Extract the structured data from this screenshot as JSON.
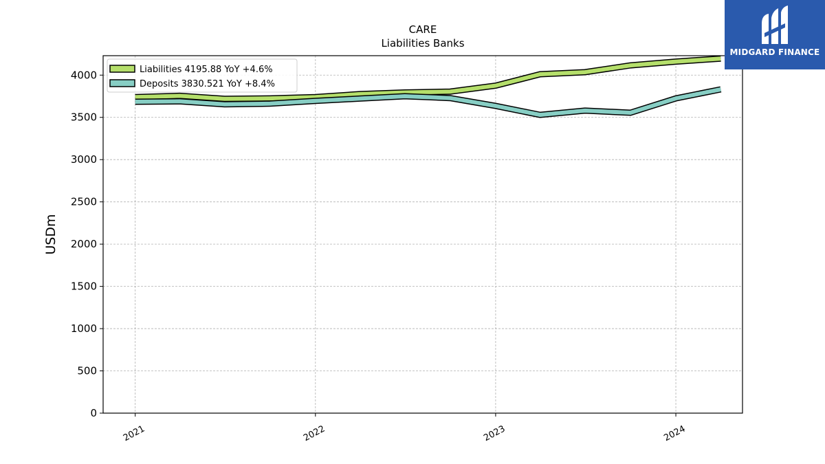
{
  "brand": {
    "name": "MIDGARD FINANCE",
    "icon": "midgard-mark-icon",
    "background": "#2a5aad"
  },
  "chart_data": {
    "type": "line",
    "title": "CARE",
    "subtitle": "Liabilities Banks",
    "xlabel": "",
    "ylabel": "USDm",
    "ylim": [
      0,
      4230
    ],
    "yticks": [
      0,
      500,
      1000,
      1500,
      2000,
      2500,
      3000,
      3500,
      4000
    ],
    "xticks": [
      "2021",
      "2022",
      "2023",
      "2024"
    ],
    "xlim": [
      "2020-10-28",
      "2024-05-15"
    ],
    "grid": true,
    "legend_position": "top-left",
    "x": [
      "2021-01-01",
      "2021-04-01",
      "2021-07-01",
      "2021-10-01",
      "2022-01-01",
      "2022-04-01",
      "2022-07-01",
      "2022-10-01",
      "2023-01-01",
      "2023-04-01",
      "2023-07-01",
      "2023-10-01",
      "2024-01-01",
      "2024-04-01"
    ],
    "series": [
      {
        "name": "Liabilities",
        "legend_label": "Liabilities  4195.88 YoY +4.6%",
        "color": "#b5df6b",
        "values": [
          3740,
          3755,
          3720,
          3725,
          3740,
          3775,
          3795,
          3805,
          3875,
          4010,
          4035,
          4115,
          4160,
          4196
        ]
      },
      {
        "name": "Deposits",
        "legend_label": "Deposits  3830.521 YoY +8.4%",
        "color": "#87cec4",
        "values": [
          3685,
          3690,
          3655,
          3662,
          3695,
          3722,
          3750,
          3728,
          3635,
          3530,
          3580,
          3555,
          3725,
          3831
        ]
      }
    ]
  }
}
